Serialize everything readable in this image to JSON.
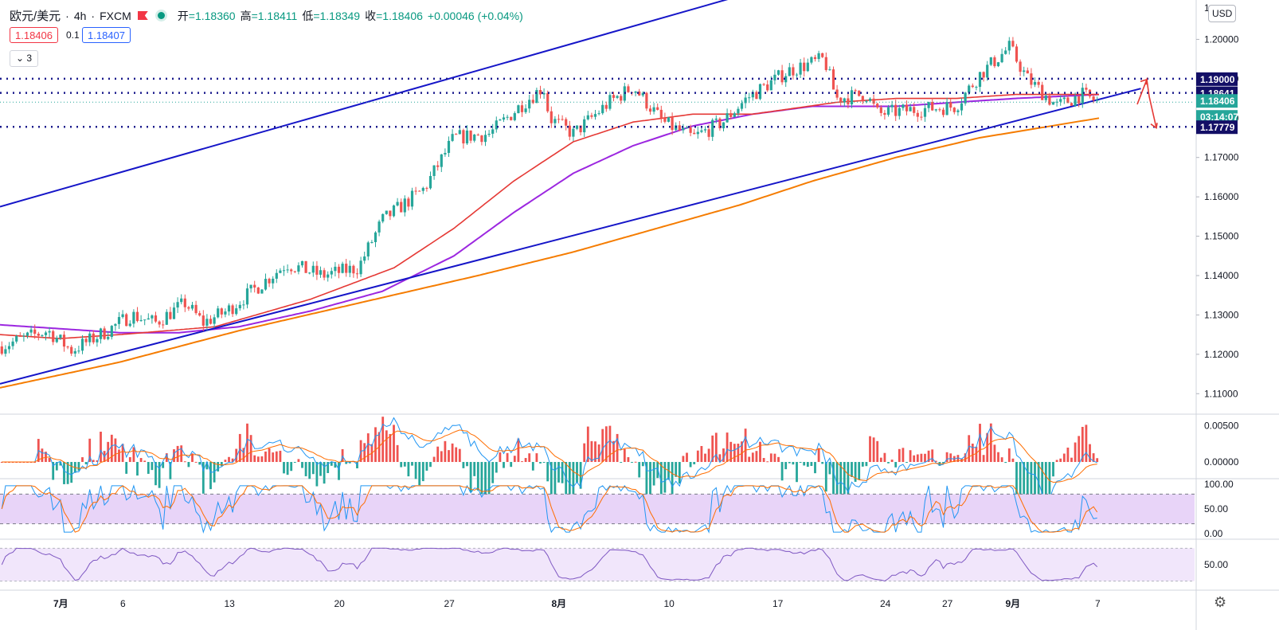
{
  "header": {
    "symbol": "欧元/美元",
    "interval": "4h",
    "source": "FXCM",
    "open_label": "开",
    "open": "=1.18360",
    "high_label": "高",
    "high": "=1.18411",
    "low_label": "低",
    "low": "=1.18349",
    "close_label": "收",
    "close": "=1.18406",
    "change": "+0.00046 (+0.04%)",
    "sell": "1.18406",
    "spread": "0.1",
    "buy": "1.18407",
    "indicators_count": "3",
    "currency": "USD"
  },
  "colors": {
    "up": "#26a69a",
    "down": "#ef5350",
    "trend": "#1515c8",
    "ma_red": "#e53935",
    "ma_purple": "#9c27e0",
    "ma_orange": "#f57c00",
    "hline": "#1a1a8c",
    "band": "#e8d4f8",
    "label_bg": "#130f66",
    "current_bg": "#26a69a"
  },
  "chart_data": {
    "type": "candlestick",
    "price_axis": {
      "min": 1.105,
      "max": 1.21,
      "ticks": [
        "1.11000",
        "1.12000",
        "1.13000",
        "1.14000",
        "1.15000",
        "1.16000",
        "1.17000",
        "1.18000",
        "1.19000",
        "1.20000"
      ]
    },
    "x_labels": [
      {
        "t": 0.05,
        "label": "7月"
      },
      {
        "t": 0.106,
        "label": "6"
      },
      {
        "t": 0.193,
        "label": "13"
      },
      {
        "t": 0.285,
        "label": "20"
      },
      {
        "t": 0.377,
        "label": "27"
      },
      {
        "t": 0.467,
        "label": "8月"
      },
      {
        "t": 0.561,
        "label": "10"
      },
      {
        "t": 0.652,
        "label": "17"
      },
      {
        "t": 0.742,
        "label": "24"
      },
      {
        "t": 0.794,
        "label": "27"
      },
      {
        "t": 0.847,
        "label": "9月"
      },
      {
        "t": 0.922,
        "label": "7"
      }
    ],
    "price_path": [
      [
        0,
        1.122
      ],
      [
        0.04,
        1.126
      ],
      [
        0.06,
        1.121
      ],
      [
        0.09,
        1.126
      ],
      [
        0.11,
        1.13
      ],
      [
        0.13,
        1.128
      ],
      [
        0.155,
        1.133
      ],
      [
        0.17,
        1.128
      ],
      [
        0.19,
        1.131
      ],
      [
        0.215,
        1.137
      ],
      [
        0.24,
        1.143
      ],
      [
        0.27,
        1.14
      ],
      [
        0.3,
        1.142
      ],
      [
        0.32,
        1.154
      ],
      [
        0.355,
        1.162
      ],
      [
        0.38,
        1.175
      ],
      [
        0.41,
        1.176
      ],
      [
        0.435,
        1.183
      ],
      [
        0.455,
        1.188
      ],
      [
        0.46,
        1.18
      ],
      [
        0.48,
        1.176
      ],
      [
        0.51,
        1.184
      ],
      [
        0.53,
        1.188
      ],
      [
        0.555,
        1.179
      ],
      [
        0.58,
        1.175
      ],
      [
        0.605,
        1.179
      ],
      [
        0.625,
        1.185
      ],
      [
        0.66,
        1.192
      ],
      [
        0.69,
        1.195
      ],
      [
        0.7,
        1.185
      ],
      [
        0.725,
        1.186
      ],
      [
        0.735,
        1.181
      ],
      [
        0.76,
        1.182
      ],
      [
        0.8,
        1.183
      ],
      [
        0.82,
        1.191
      ],
      [
        0.845,
        1.198
      ],
      [
        0.86,
        1.19
      ],
      [
        0.885,
        1.183
      ],
      [
        0.905,
        1.186
      ],
      [
        0.92,
        1.184
      ]
    ],
    "ma_red": [
      [
        0,
        1.125
      ],
      [
        0.05,
        1.124
      ],
      [
        0.1,
        1.125
      ],
      [
        0.18,
        1.127
      ],
      [
        0.26,
        1.134
      ],
      [
        0.33,
        1.142
      ],
      [
        0.38,
        1.152
      ],
      [
        0.43,
        1.164
      ],
      [
        0.48,
        1.174
      ],
      [
        0.53,
        1.179
      ],
      [
        0.58,
        1.181
      ],
      [
        0.63,
        1.181
      ],
      [
        0.7,
        1.184
      ],
      [
        0.75,
        1.185
      ],
      [
        0.8,
        1.185
      ],
      [
        0.85,
        1.186
      ],
      [
        0.92,
        1.186
      ]
    ],
    "ma_purple": [
      [
        0,
        1.1275
      ],
      [
        0.05,
        1.1265
      ],
      [
        0.1,
        1.1255
      ],
      [
        0.15,
        1.1255
      ],
      [
        0.2,
        1.127
      ],
      [
        0.26,
        1.131
      ],
      [
        0.32,
        1.136
      ],
      [
        0.38,
        1.145
      ],
      [
        0.43,
        1.156
      ],
      [
        0.48,
        1.166
      ],
      [
        0.53,
        1.173
      ],
      [
        0.58,
        1.178
      ],
      [
        0.63,
        1.181
      ],
      [
        0.68,
        1.183
      ],
      [
        0.75,
        1.183
      ],
      [
        0.8,
        1.184
      ],
      [
        0.85,
        1.185
      ],
      [
        0.92,
        1.186
      ]
    ],
    "ma_orange": [
      [
        0,
        1.1115
      ],
      [
        0.1,
        1.118
      ],
      [
        0.2,
        1.126
      ],
      [
        0.3,
        1.133
      ],
      [
        0.4,
        1.14
      ],
      [
        0.48,
        1.146
      ],
      [
        0.55,
        1.152
      ],
      [
        0.62,
        1.158
      ],
      [
        0.68,
        1.164
      ],
      [
        0.75,
        1.17
      ],
      [
        0.82,
        1.175
      ],
      [
        0.88,
        1.178
      ],
      [
        0.92,
        1.18
      ]
    ],
    "trendlines": [
      {
        "from": [
          0,
          1.1575
        ],
        "to": [
          0.74,
          1.2215
        ]
      },
      {
        "from": [
          0,
          1.1125
        ],
        "to": [
          0.955,
          1.1875
        ]
      }
    ],
    "hlines": [
      1.19,
      1.18641,
      1.17779
    ],
    "price_labels": [
      {
        "v": 1.19,
        "text": "1.19000",
        "kind": "dark"
      },
      {
        "v": 1.18641,
        "text": "1.18641",
        "kind": "dark"
      },
      {
        "v": 1.18406,
        "text": "1.18406",
        "kind": "current"
      },
      {
        "v": 1.18406,
        "text": "03:14:07",
        "kind": "timer"
      },
      {
        "v": 1.17779,
        "text": "1.17779",
        "kind": "dark"
      }
    ],
    "macd_axis": {
      "min": -0.0022,
      "max": 0.0065,
      "ticks": [
        "0.00500",
        "0.00000"
      ]
    },
    "stoch_axis": {
      "ticks": [
        "100.00",
        "50.00",
        "0.00"
      ]
    },
    "rsi_axis": {
      "ticks": [
        "50.00"
      ]
    }
  }
}
